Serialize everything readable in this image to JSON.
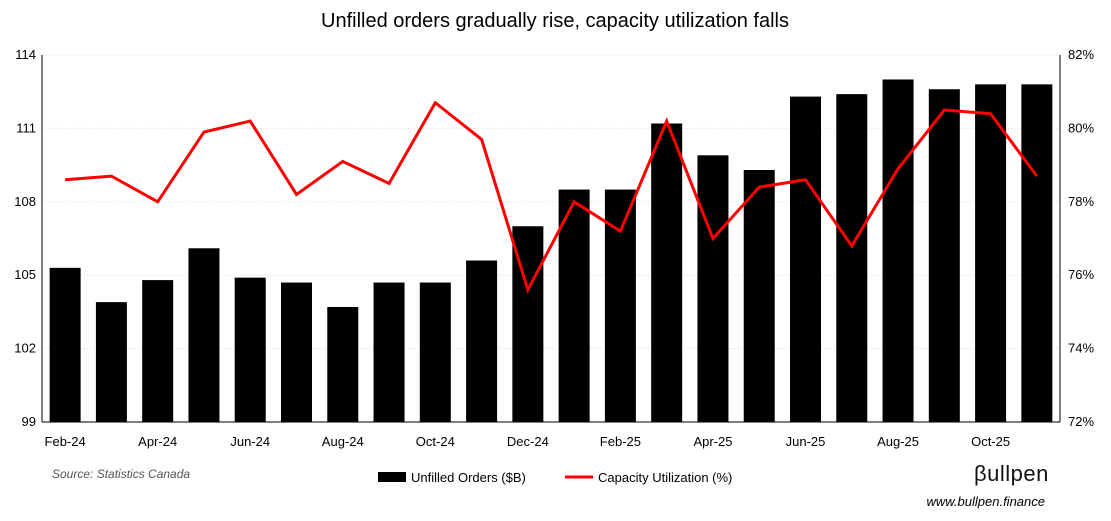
{
  "chart_data": {
    "type": "bar",
    "title": "Unfilled orders gradually rise, capacity utilization falls",
    "categories": [
      "Feb-24",
      "Mar-24",
      "Apr-24",
      "May-24",
      "Jun-24",
      "Jul-24",
      "Aug-24",
      "Sep-24",
      "Oct-24",
      "Nov-24",
      "Dec-24",
      "Jan-25",
      "Feb-25",
      "Mar-25",
      "Apr-25",
      "May-25",
      "Jun-25",
      "Jul-25",
      "Aug-25",
      "Sep-25",
      "Oct-25",
      "Nov-25"
    ],
    "x_tick_labels": [
      "Feb-24",
      "Apr-24",
      "Jun-24",
      "Aug-24",
      "Oct-24",
      "Dec-24",
      "Feb-25",
      "Apr-25",
      "Jun-25",
      "Aug-25",
      "Oct-25"
    ],
    "series": [
      {
        "name": "Unfilled Orders ($B)",
        "type": "bar",
        "axis": "left",
        "color": "#000000",
        "values": [
          105.3,
          103.9,
          104.8,
          106.1,
          104.9,
          104.7,
          103.7,
          104.7,
          104.7,
          105.6,
          107.0,
          108.5,
          108.5,
          111.2,
          109.9,
          109.3,
          112.3,
          112.4,
          113.0,
          112.6,
          112.8,
          112.8
        ]
      },
      {
        "name": "Capacity Utilization (%)",
        "type": "line",
        "axis": "right",
        "color": "#ff0000",
        "values": [
          78.6,
          78.7,
          78.0,
          79.9,
          80.2,
          78.2,
          79.1,
          78.5,
          80.7,
          79.7,
          75.6,
          78.0,
          77.2,
          80.2,
          77.0,
          78.4,
          78.6,
          76.8,
          78.9,
          80.5,
          80.4,
          78.7
        ]
      }
    ],
    "y_left": {
      "ylim": [
        99,
        114
      ],
      "ticks": [
        "99",
        "102",
        "105",
        "108",
        "111",
        "114"
      ]
    },
    "y_right": {
      "ylim": [
        72,
        82
      ],
      "ticks": [
        "72%",
        "74%",
        "76%",
        "78%",
        "80%",
        "82%"
      ]
    },
    "grid": true,
    "legend_position": "bottom-center"
  },
  "source": "Source: Statistics Canada",
  "brand": {
    "name": "βullpen",
    "url": "www.bullpen.finance"
  }
}
